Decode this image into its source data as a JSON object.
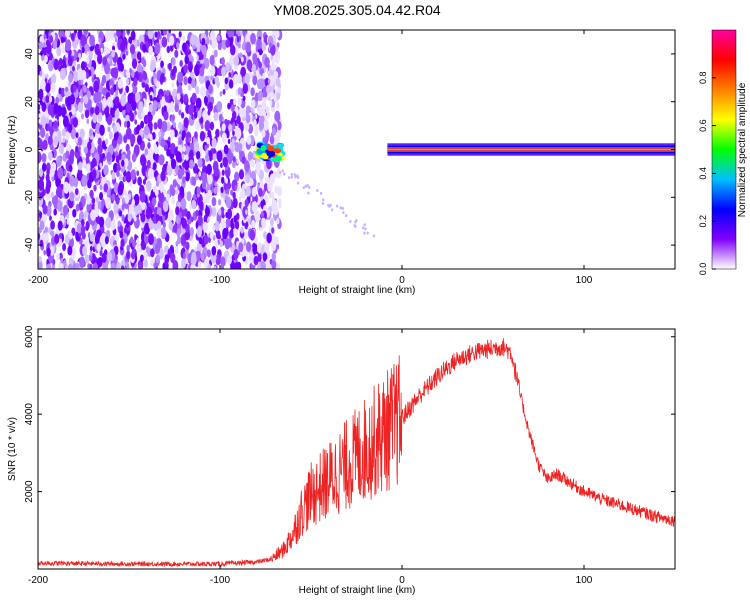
{
  "title": "YM08.2025.305.04.42.R04",
  "chart_data": [
    {
      "type": "heatmap",
      "title": "YM08.2025.305.04.42.R04",
      "xlabel": "Height of straight line (km)",
      "ylabel": "Frequency (Hz)",
      "xlim": [
        -200,
        150
      ],
      "ylim": [
        -50,
        50
      ],
      "xticks": [
        -200,
        -100,
        0,
        100
      ],
      "xtick_labels": [
        "-200",
        "-100",
        "0",
        "100"
      ],
      "yticks": [
        -40,
        -20,
        0,
        20,
        40
      ],
      "ytick_labels": [
        "-40",
        "-20",
        "0",
        "20",
        "40"
      ],
      "noise_region_km": [
        -200,
        -75
      ],
      "tone_frequency_hz": 0,
      "tone_start_km": -75,
      "colorbar": {
        "label": "Normalized spectral amplitude",
        "range": [
          0,
          1
        ],
        "ticks": [
          0.0,
          0.2,
          0.4,
          0.6,
          0.8
        ],
        "tick_labels": [
          "0.0",
          "0.2",
          "0.4",
          "0.6",
          "0.8"
        ],
        "colormap": [
          "#ffffff",
          "#8000ff",
          "#0000ff",
          "#00c0ff",
          "#00ff00",
          "#ffff00",
          "#ff8000",
          "#ff0000",
          "#ff00a0"
        ]
      }
    },
    {
      "type": "line",
      "xlabel": "Height of straight line (km)",
      "ylabel": "SNR (10 * v/v)",
      "xlim": [
        -200,
        150
      ],
      "ylim": [
        0,
        6200
      ],
      "xticks": [
        -200,
        -100,
        0,
        100
      ],
      "xtick_labels": [
        "-200",
        "-100",
        "0",
        "100"
      ],
      "yticks": [
        2000,
        4000,
        6000
      ],
      "ytick_labels": [
        "2000",
        "4000",
        "6000"
      ],
      "color": "#ee2222",
      "series": [
        {
          "name": "SNR",
          "x": [
            -200,
            -150,
            -100,
            -80,
            -72,
            -65,
            -60,
            -55,
            -50,
            -40,
            -30,
            -20,
            -10,
            0,
            10,
            20,
            30,
            40,
            50,
            55,
            60,
            65,
            70,
            75,
            80,
            85,
            90,
            100,
            110,
            120,
            130,
            140,
            150
          ],
          "values": [
            150,
            130,
            130,
            180,
            250,
            500,
            900,
            1500,
            1900,
            2300,
            2700,
            3100,
            3500,
            3900,
            4500,
            5000,
            5400,
            5600,
            5700,
            5750,
            5600,
            4500,
            3500,
            2700,
            2300,
            2450,
            2300,
            2000,
            1800,
            1650,
            1500,
            1350,
            1250
          ]
        }
      ]
    }
  ]
}
